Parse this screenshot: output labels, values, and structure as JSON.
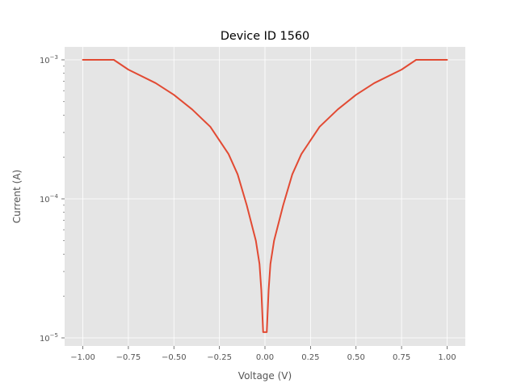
{
  "chart_data": {
    "type": "line",
    "title": "Device ID 1560",
    "xlabel": "Voltage (V)",
    "ylabel": "Current (A)",
    "xlim": [
      -1.1,
      1.1
    ],
    "ylim": [
      1e-05,
      0.001
    ],
    "y_scale": "log",
    "grid": true,
    "x_ticks": [
      -1.0,
      -0.75,
      -0.5,
      -0.25,
      0.0,
      0.25,
      0.5,
      0.75,
      1.0
    ],
    "x_tick_labels": [
      "−1.00",
      "−0.75",
      "−0.50",
      "−0.25",
      "0.00",
      "0.25",
      "0.50",
      "0.75",
      "1.00"
    ],
    "y_ticks": [
      1e-05,
      0.0001,
      0.001
    ],
    "y_tick_mantissa": [
      "10",
      "10",
      "10"
    ],
    "y_tick_exponents": [
      "−5",
      "−4",
      "−3"
    ],
    "colors": {
      "series": "#E24A33",
      "plot_background": "#E5E5E5",
      "grid": "#FFFFFF",
      "tick_text": "#555555"
    },
    "series": [
      {
        "x": [
          -1.0,
          -0.83,
          -0.75,
          -0.6,
          -0.5,
          -0.4,
          -0.3,
          -0.2,
          -0.15,
          -0.1,
          -0.05,
          -0.03,
          -0.02,
          -0.01,
          0.0,
          0.01,
          0.02,
          0.03,
          0.05,
          0.1,
          0.15,
          0.2,
          0.3,
          0.4,
          0.5,
          0.6,
          0.75,
          0.83,
          1.0
        ],
        "y": [
          0.001,
          0.001,
          0.00085,
          0.00068,
          0.00056,
          0.00044,
          0.00033,
          0.00021,
          0.00015,
          9e-05,
          5e-05,
          3.4e-05,
          2.2e-05,
          1.1e-05,
          1.1e-05,
          1.1e-05,
          2.2e-05,
          3.4e-05,
          5e-05,
          9e-05,
          0.00015,
          0.00021,
          0.00033,
          0.00044,
          0.00056,
          0.00068,
          0.00085,
          0.001,
          0.001
        ]
      }
    ]
  }
}
